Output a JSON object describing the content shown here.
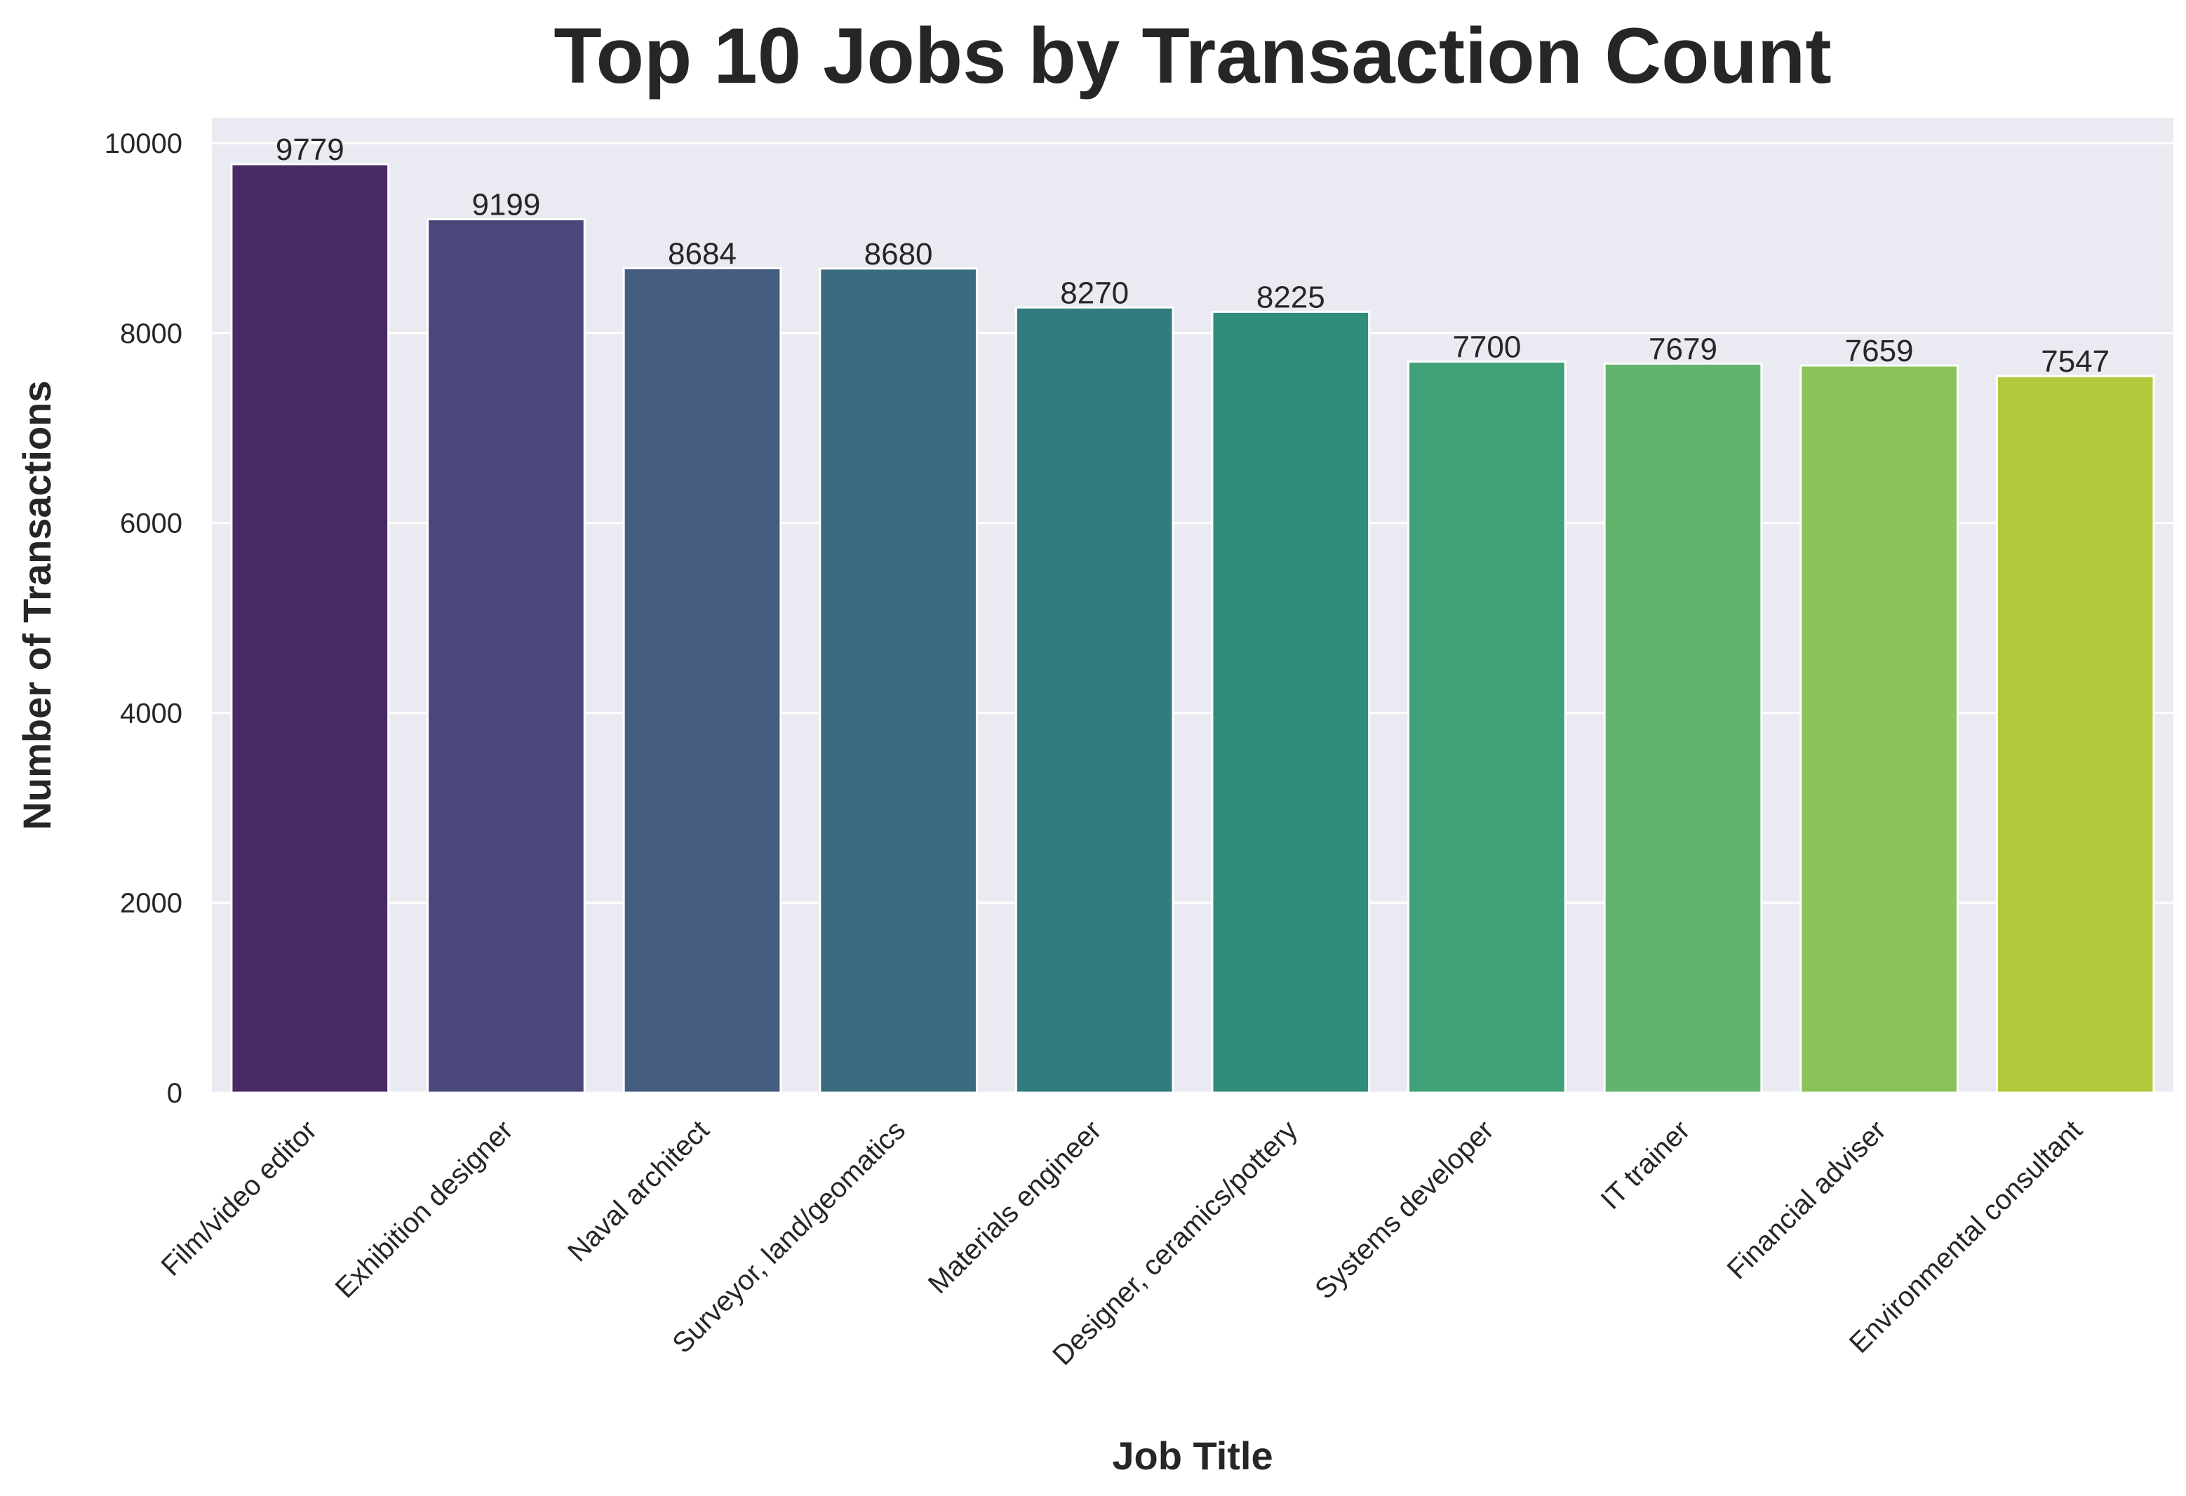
{
  "chart_data": {
    "type": "bar",
    "title": "Top 10 Jobs by Transaction Count",
    "xlabel": "Job Title",
    "ylabel": "Number of Transactions",
    "categories": [
      "Film/video editor",
      "Exhibition designer",
      "Naval architect",
      "Surveyor, land/geomatics",
      "Materials engineer",
      "Designer, ceramics/pottery",
      "Systems developer",
      "IT trainer",
      "Financial adviser",
      "Environmental consultant"
    ],
    "values": [
      9779,
      9199,
      8684,
      8680,
      8270,
      8225,
      7700,
      7679,
      7659,
      7547
    ],
    "data_labels": [
      "9779",
      "9199",
      "8684",
      "8680",
      "8270",
      "8225",
      "7700",
      "7679",
      "7659",
      "7547"
    ],
    "colors": [
      "#482a65",
      "#4a477a",
      "#435c80",
      "#3a6c7f",
      "#327b7e",
      "#328c7c",
      "#40a077",
      "#62b46d",
      "#89c35a",
      "#b2c83c"
    ],
    "yticks": [
      0,
      2000,
      4000,
      6000,
      8000,
      10000
    ],
    "ytick_labels": [
      "0",
      "2000",
      "4000",
      "6000",
      "8000",
      "10000"
    ],
    "ylim": [
      0,
      10267
    ],
    "grid": true,
    "background_color": "#eaeaf2",
    "grid_color": "#ffffff",
    "legend": "none"
  }
}
